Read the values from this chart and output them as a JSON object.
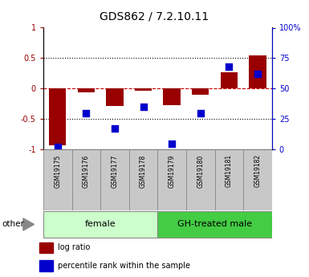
{
  "title": "GDS862 / 7.2.10.11",
  "samples": [
    "GSM19175",
    "GSM19176",
    "GSM19177",
    "GSM19178",
    "GSM19179",
    "GSM19180",
    "GSM19181",
    "GSM19182"
  ],
  "log_ratio": [
    -0.93,
    -0.06,
    -0.28,
    -0.04,
    -0.27,
    -0.1,
    0.27,
    0.55
  ],
  "percentile_rank": [
    2,
    30,
    17,
    35,
    5,
    30,
    68,
    62
  ],
  "groups": [
    {
      "label": "female",
      "start": 0,
      "end": 4,
      "color": "#ccffcc"
    },
    {
      "label": "GH-treated male",
      "start": 4,
      "end": 8,
      "color": "#44cc44"
    }
  ],
  "ylim_left": [
    -1,
    1
  ],
  "ylim_right": [
    0,
    100
  ],
  "yticks_left": [
    -1,
    -0.5,
    0,
    0.5,
    1
  ],
  "yticks_right": [
    0,
    25,
    50,
    75,
    100
  ],
  "ytick_labels_right": [
    "0",
    "25",
    "50",
    "75",
    "100%"
  ],
  "bar_color": "#990000",
  "dot_color": "#0000cc",
  "hline_color": "#cc0000",
  "grid_color": "#000000",
  "legend_bar_label": "log ratio",
  "legend_dot_label": "percentile rank within the sample",
  "bar_width": 0.6,
  "dot_size": 28
}
